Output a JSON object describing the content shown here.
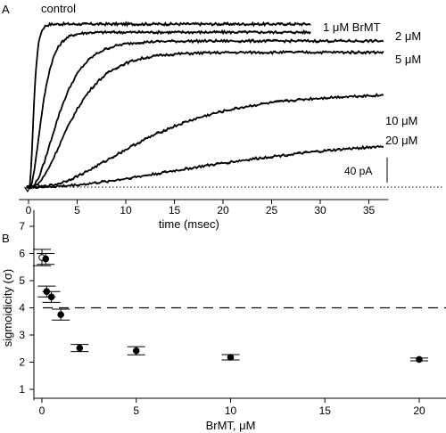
{
  "chart_data": [
    {
      "panel": "A",
      "type": "line",
      "xlabel": "time (msec)",
      "ylabel": "",
      "xlim": [
        -1,
        37
      ],
      "xticks": [
        "0",
        "5",
        "10",
        "15",
        "20",
        "25",
        "30",
        "35"
      ],
      "xtick_values": [
        0,
        5,
        10,
        15,
        20,
        25,
        30,
        35
      ],
      "scale_bar": {
        "label": "40 pA",
        "value_pA": 40
      },
      "baseline": "dotted",
      "ylim_pA": [
        0,
        270
      ],
      "series": [
        {
          "name": "control",
          "plateau_pA": 260,
          "tau_ms": 0.3,
          "order": 4,
          "end_ms": 29
        },
        {
          "name": "1 μM BrMT",
          "plateau_pA": 247,
          "tau_ms": 0.9,
          "order": 3,
          "end_ms": 29
        },
        {
          "name": "2 μM",
          "plateau_pA": 233,
          "tau_ms": 2.0,
          "order": 3,
          "end_ms": 36.5
        },
        {
          "name": "5 μM",
          "plateau_pA": 215,
          "tau_ms": 2.8,
          "order": 3,
          "end_ms": 36.5
        },
        {
          "name": "10 μM",
          "plateau_pA": 150,
          "tau_ms": 7.5,
          "order": 3,
          "end_ms": 36.5
        },
        {
          "name": "20 μM",
          "plateau_pA": 82,
          "tau_ms": 15.0,
          "order": 2.5,
          "end_ms": 36.5
        }
      ]
    },
    {
      "panel": "B",
      "type": "scatter",
      "xlabel": "BrMT, μM",
      "ylabel": "sigmoidicity (σ)",
      "xlim": [
        -0.5,
        21.5
      ],
      "ylim": [
        0.6,
        7.6
      ],
      "xticks": [
        "0",
        "5",
        "10",
        "15",
        "20"
      ],
      "xtick_values": [
        0,
        5,
        10,
        15,
        20
      ],
      "yticks": [
        "1",
        "2",
        "3",
        "4",
        "5",
        "6",
        "7"
      ],
      "ytick_values": [
        1,
        2,
        3,
        4,
        5,
        6,
        7
      ],
      "reference_line": {
        "y": 4,
        "style": "dashed"
      },
      "points": [
        {
          "x": 0,
          "y": 5.85,
          "err": 0.3,
          "marker": "open"
        },
        {
          "x": 0.2,
          "y": 5.8,
          "err": 0.2,
          "marker": "filled"
        },
        {
          "x": 0.25,
          "y": 4.6,
          "err": 0.2,
          "marker": "filled"
        },
        {
          "x": 0.5,
          "y": 4.4,
          "err": 0.2,
          "marker": "filled"
        },
        {
          "x": 1,
          "y": 3.75,
          "err": 0.2,
          "marker": "filled"
        },
        {
          "x": 2,
          "y": 2.52,
          "err": 0.13,
          "marker": "filled"
        },
        {
          "x": 5,
          "y": 2.42,
          "err": 0.15,
          "marker": "filled"
        },
        {
          "x": 10,
          "y": 2.18,
          "err": 0.1,
          "marker": "filled"
        },
        {
          "x": 20,
          "y": 2.1,
          "err": 0.05,
          "marker": "filled"
        }
      ]
    }
  ]
}
